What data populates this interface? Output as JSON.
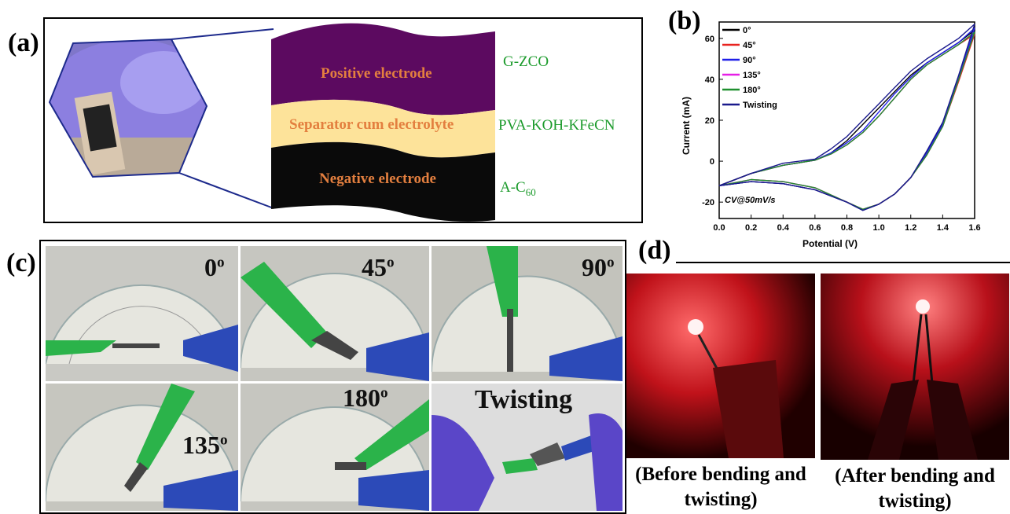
{
  "panels": {
    "a": {
      "label": "(a)",
      "layers": [
        {
          "name": "Positive electrode",
          "material": "G-ZCO",
          "color": "#5c0a60"
        },
        {
          "name": "Separator cum electrolyte",
          "material": "PVA-KOH-KFeCN",
          "color": "#fde39a"
        },
        {
          "name": "Negative electrode",
          "material_base": "A-C",
          "material_sub": "60",
          "color": "#0a0a0a"
        }
      ],
      "label_color": "#e37f3f",
      "material_color": "#1a9a2a"
    },
    "b": {
      "label": "(b)",
      "annotation": "CV@50mV/s"
    },
    "c": {
      "label": "(c)",
      "angles": [
        "0o",
        "45o",
        "90o",
        "135o",
        "180o",
        "Twisting"
      ]
    },
    "d": {
      "label": "(d)",
      "captions": [
        {
          "line1": "(Before bending and",
          "line2": "twisting)"
        },
        {
          "line1": "(After bending and",
          "line2": "twisting)"
        }
      ]
    }
  },
  "chart_data": {
    "type": "line",
    "title": "",
    "xlabel": "Potential (V)",
    "ylabel": "Current (mA)",
    "xlim": [
      0.0,
      1.6
    ],
    "ylim": [
      -28,
      68
    ],
    "xticks": [
      "0.0",
      "0.2",
      "0.4",
      "0.6",
      "0.8",
      "1.0",
      "1.2",
      "1.4",
      "1.6"
    ],
    "yticks": [
      "-20",
      "0",
      "20",
      "40",
      "60"
    ],
    "legend_position": "top-left",
    "annotation": "CV@50mV/s",
    "series": [
      {
        "name": "0°",
        "color": "#000000",
        "anodic": [
          [
            0,
            -12
          ],
          [
            0.2,
            -6
          ],
          [
            0.4,
            -2
          ],
          [
            0.6,
            0.5
          ],
          [
            0.7,
            4
          ],
          [
            0.8,
            10
          ],
          [
            0.9,
            18
          ],
          [
            1.0,
            26
          ],
          [
            1.1,
            34
          ],
          [
            1.2,
            42
          ],
          [
            1.3,
            48
          ],
          [
            1.4,
            53
          ],
          [
            1.5,
            58
          ],
          [
            1.6,
            64
          ]
        ],
        "cathodic": [
          [
            1.6,
            64
          ],
          [
            1.5,
            40
          ],
          [
            1.4,
            18
          ],
          [
            1.3,
            4
          ],
          [
            1.2,
            -8
          ],
          [
            1.1,
            -16
          ],
          [
            1.0,
            -21
          ],
          [
            0.9,
            -24
          ],
          [
            0.8,
            -20
          ],
          [
            0.6,
            -14
          ],
          [
            0.4,
            -11
          ],
          [
            0.2,
            -10
          ],
          [
            0,
            -12
          ]
        ]
      },
      {
        "name": "45°",
        "color": "#e8231f",
        "anodic": [
          [
            0,
            -12
          ],
          [
            0.2,
            -6
          ],
          [
            0.4,
            -2
          ],
          [
            0.6,
            0.5
          ],
          [
            0.7,
            3.5
          ],
          [
            0.8,
            8
          ],
          [
            0.9,
            14
          ],
          [
            1.0,
            22
          ],
          [
            1.1,
            31
          ],
          [
            1.2,
            40
          ],
          [
            1.3,
            47
          ],
          [
            1.4,
            52
          ],
          [
            1.5,
            57
          ],
          [
            1.6,
            62
          ]
        ],
        "cathodic": [
          [
            1.6,
            62
          ],
          [
            1.5,
            39
          ],
          [
            1.4,
            17
          ],
          [
            1.3,
            3
          ],
          [
            1.2,
            -8
          ],
          [
            1.1,
            -16
          ],
          [
            1.0,
            -21
          ],
          [
            0.9,
            -23.5
          ],
          [
            0.8,
            -20
          ],
          [
            0.6,
            -13
          ],
          [
            0.4,
            -10
          ],
          [
            0.2,
            -9
          ],
          [
            0,
            -12
          ]
        ]
      },
      {
        "name": "90°",
        "color": "#1f1fe8",
        "anodic": [
          [
            0,
            -12
          ],
          [
            0.2,
            -6
          ],
          [
            0.4,
            -2
          ],
          [
            0.6,
            0.5
          ],
          [
            0.7,
            4
          ],
          [
            0.8,
            9
          ],
          [
            0.9,
            15
          ],
          [
            1.0,
            24
          ],
          [
            1.1,
            33
          ],
          [
            1.2,
            41
          ],
          [
            1.3,
            48
          ],
          [
            1.4,
            53
          ],
          [
            1.5,
            58
          ],
          [
            1.6,
            65
          ]
        ],
        "cathodic": [
          [
            1.6,
            65
          ],
          [
            1.5,
            41
          ],
          [
            1.4,
            18
          ],
          [
            1.3,
            4
          ],
          [
            1.2,
            -8
          ],
          [
            1.1,
            -16
          ],
          [
            1.0,
            -21
          ],
          [
            0.9,
            -24
          ],
          [
            0.8,
            -20
          ],
          [
            0.6,
            -14
          ],
          [
            0.4,
            -11
          ],
          [
            0.2,
            -10
          ],
          [
            0,
            -12
          ]
        ]
      },
      {
        "name": "135°",
        "color": "#e61fe6",
        "anodic": [
          [
            0,
            -12
          ],
          [
            0.2,
            -6
          ],
          [
            0.4,
            -2
          ],
          [
            0.6,
            0.5
          ],
          [
            0.7,
            3.5
          ],
          [
            0.8,
            8
          ],
          [
            0.9,
            14
          ],
          [
            1.0,
            22
          ],
          [
            1.1,
            31
          ],
          [
            1.2,
            40
          ],
          [
            1.3,
            47
          ],
          [
            1.4,
            52
          ],
          [
            1.5,
            57
          ],
          [
            1.6,
            63
          ]
        ],
        "cathodic": [
          [
            1.6,
            63
          ],
          [
            1.5,
            40
          ],
          [
            1.4,
            17
          ],
          [
            1.3,
            3
          ],
          [
            1.2,
            -8
          ],
          [
            1.1,
            -16
          ],
          [
            1.0,
            -21
          ],
          [
            0.9,
            -23.5
          ],
          [
            0.8,
            -20
          ],
          [
            0.6,
            -13
          ],
          [
            0.4,
            -10
          ],
          [
            0.2,
            -9
          ],
          [
            0,
            -12
          ]
        ]
      },
      {
        "name": "180°",
        "color": "#1f8f2f",
        "anodic": [
          [
            0,
            -12
          ],
          [
            0.2,
            -6
          ],
          [
            0.4,
            -2
          ],
          [
            0.6,
            0.5
          ],
          [
            0.7,
            3.5
          ],
          [
            0.8,
            8
          ],
          [
            0.9,
            14
          ],
          [
            1.0,
            22
          ],
          [
            1.1,
            31
          ],
          [
            1.2,
            40
          ],
          [
            1.3,
            47
          ],
          [
            1.4,
            52
          ],
          [
            1.5,
            57
          ],
          [
            1.6,
            63
          ]
        ],
        "cathodic": [
          [
            1.6,
            63
          ],
          [
            1.5,
            40
          ],
          [
            1.4,
            17
          ],
          [
            1.3,
            3
          ],
          [
            1.2,
            -8
          ],
          [
            1.1,
            -16
          ],
          [
            1.0,
            -21
          ],
          [
            0.9,
            -23.5
          ],
          [
            0.8,
            -20
          ],
          [
            0.6,
            -13
          ],
          [
            0.4,
            -10
          ],
          [
            0.2,
            -9
          ],
          [
            0,
            -12
          ]
        ]
      },
      {
        "name": "Twisting",
        "color": "#1a1a8c",
        "anodic": [
          [
            0,
            -12
          ],
          [
            0.2,
            -6
          ],
          [
            0.4,
            -1
          ],
          [
            0.6,
            1
          ],
          [
            0.7,
            6
          ],
          [
            0.8,
            12
          ],
          [
            0.9,
            20
          ],
          [
            1.0,
            28
          ],
          [
            1.1,
            36
          ],
          [
            1.2,
            44
          ],
          [
            1.3,
            50
          ],
          [
            1.4,
            55
          ],
          [
            1.5,
            60
          ],
          [
            1.6,
            67
          ]
        ],
        "cathodic": [
          [
            1.6,
            67
          ],
          [
            1.5,
            42
          ],
          [
            1.4,
            19
          ],
          [
            1.3,
            5
          ],
          [
            1.2,
            -8
          ],
          [
            1.1,
            -16
          ],
          [
            1.0,
            -21
          ],
          [
            0.9,
            -24
          ],
          [
            0.8,
            -20
          ],
          [
            0.6,
            -14
          ],
          [
            0.4,
            -11
          ],
          [
            0.2,
            -10
          ],
          [
            0,
            -12
          ]
        ]
      }
    ]
  }
}
